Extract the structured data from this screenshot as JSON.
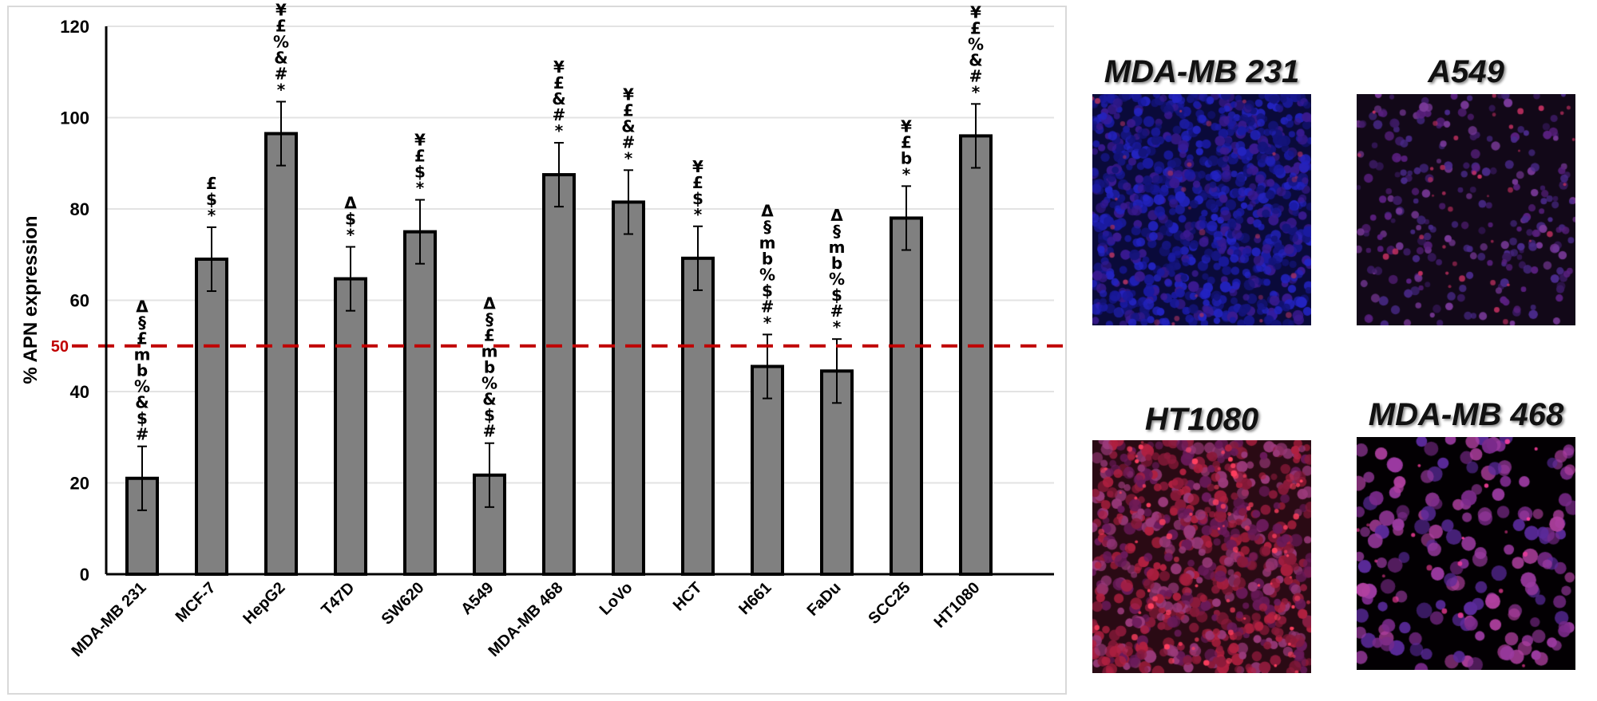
{
  "chart_data": {
    "type": "bar",
    "title": "",
    "xlabel": "",
    "ylabel": "% APN expression",
    "ylim": [
      0,
      120
    ],
    "yticks": [
      0,
      20,
      40,
      60,
      80,
      100,
      120
    ],
    "grid": true,
    "categories": [
      "MDA-MB 231",
      "MCF-7",
      "HepG2",
      "T47D",
      "SW620",
      "A549",
      "MDA-MB 468",
      "LoVo",
      "HCT",
      "H661",
      "FaDu",
      "SCC25",
      "HT1080"
    ],
    "values": [
      21,
      69,
      96.5,
      64.7,
      75,
      21.7,
      87.5,
      81.5,
      69.2,
      45.5,
      44.5,
      78,
      96
    ],
    "errors": [
      7,
      7,
      7,
      7,
      7,
      7,
      7,
      7,
      7,
      7,
      7,
      7,
      7
    ],
    "significance": [
      [
        "Δ",
        "§",
        "£",
        "m",
        "b",
        "%",
        "&",
        "$",
        "#"
      ],
      [
        "£",
        "$",
        "*"
      ],
      [
        "¥",
        "£",
        "%",
        "&",
        "#",
        "*"
      ],
      [
        "Δ",
        "$",
        "*"
      ],
      [
        "¥",
        "£",
        "$",
        "*"
      ],
      [
        "Δ",
        "§",
        "£",
        "m",
        "b",
        "%",
        "&",
        "$",
        "#"
      ],
      [
        "¥",
        "£",
        "&",
        "#",
        "*"
      ],
      [
        "¥",
        "£",
        "&",
        "#",
        "*"
      ],
      [
        "¥",
        "£",
        "$",
        "*"
      ],
      [
        "Δ",
        "§",
        "m",
        "b",
        "%",
        "$",
        "#",
        "*"
      ],
      [
        "Δ",
        "§",
        "m",
        "b",
        "%",
        "$",
        "#",
        "*"
      ],
      [
        "¥",
        "£",
        "b",
        "*"
      ],
      [
        "¥",
        "£",
        "%",
        "&",
        "#",
        "*"
      ]
    ],
    "reference_line": {
      "value": 50,
      "label": "50",
      "color": "#c00000",
      "style": "dashed"
    },
    "bar_color": "#808080",
    "legend": "none"
  },
  "images": [
    {
      "title": "MDA-MB 231",
      "tone": "blue-dense"
    },
    {
      "title": "A549",
      "tone": "dark-purple"
    },
    {
      "title": "HT1080",
      "tone": "red-dense"
    },
    {
      "title": "MDA-MB 468",
      "tone": "black-magenta"
    }
  ]
}
